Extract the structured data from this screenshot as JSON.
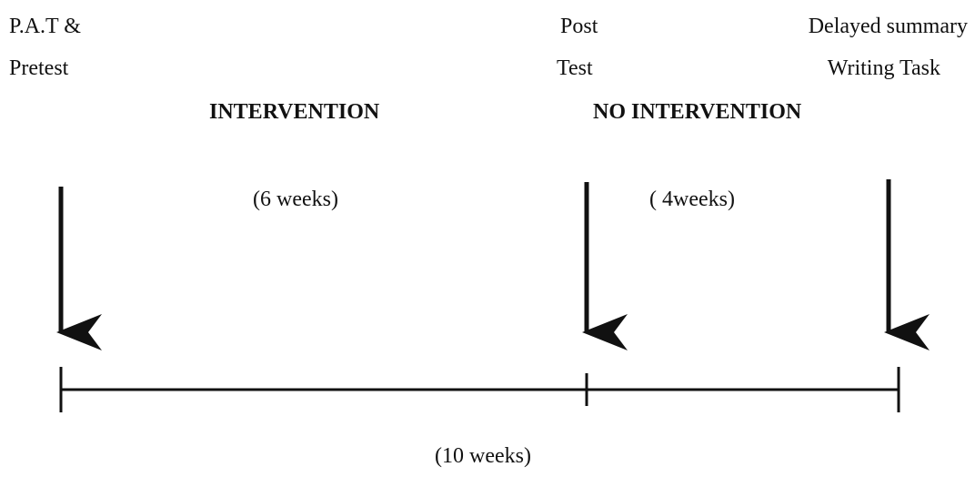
{
  "milestones": [
    {
      "line1": "P.A.T &",
      "line2": "Pretest"
    },
    {
      "line1": "Post",
      "line2": "Test"
    },
    {
      "line1": "Delayed summary",
      "line2": "Writing Task"
    }
  ],
  "phases": [
    {
      "title": "INTERVENTION",
      "duration": "(6 weeks)"
    },
    {
      "title": "NO INTERVENTION",
      "duration": "( 4weeks)"
    }
  ],
  "total": "(10 weeks)"
}
